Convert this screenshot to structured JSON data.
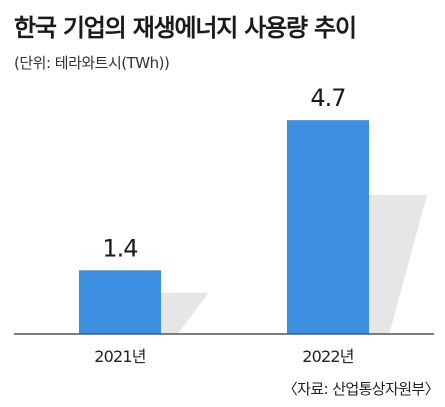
{
  "title": "한국 기업의 재생에너지 사용량 추이",
  "unit_label": "(단위: 테라와트시(TWh))",
  "source": "〈자료: 산업통상자원부〉",
  "colors": {
    "bar": "#3c8ee0",
    "shadow": "#e6e6e6",
    "axis": "#555555"
  },
  "chart_data": {
    "type": "bar",
    "categories": [
      "2021년",
      "2022년"
    ],
    "values": [
      1.4,
      4.7
    ],
    "data_labels": [
      "1.4",
      "4.7"
    ],
    "title": "한국 기업의 재생에너지 사용량 추이",
    "xlabel": "",
    "ylabel": "",
    "unit": "TWh",
    "grid": false
  }
}
